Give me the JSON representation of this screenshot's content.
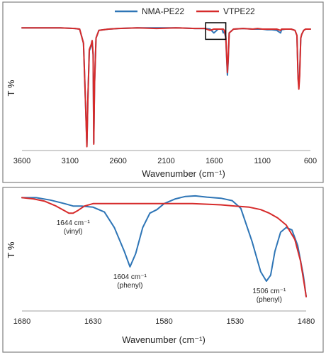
{
  "chart_data": [
    {
      "type": "line",
      "xlabel": "Wavenumber (cm⁻¹)",
      "ylabel": "T %",
      "x_reversed": true,
      "xlim": [
        3600,
        600
      ],
      "ylim": [
        0,
        100
      ],
      "xticks": [
        3600,
        3100,
        2600,
        2100,
        1600,
        1100,
        600
      ],
      "legend": {
        "placement": "top"
      },
      "series": [
        {
          "name": "NMA-PE22",
          "color": "#2e75b6",
          "points": [
            [
              3600,
              96
            ],
            [
              3400,
              96
            ],
            [
              3200,
              96
            ],
            [
              3050,
              95.5
            ],
            [
              3000,
              95
            ],
            [
              2960,
              84
            ],
            [
              2940,
              40
            ],
            [
              2925,
              4
            ],
            [
              2915,
              38
            ],
            [
              2900,
              78
            ],
            [
              2880,
              82
            ],
            [
              2870,
              86
            ],
            [
              2860,
              75
            ],
            [
              2853,
              6
            ],
            [
              2845,
              52
            ],
            [
              2830,
              88
            ],
            [
              2800,
              94
            ],
            [
              2700,
              95
            ],
            [
              2600,
              95.5
            ],
            [
              2400,
              96
            ],
            [
              2200,
              96
            ],
            [
              2000,
              96
            ],
            [
              1800,
              95.5
            ],
            [
              1700,
              95.5
            ],
            [
              1644,
              95
            ],
            [
              1604,
              92
            ],
            [
              1560,
              95
            ],
            [
              1520,
              95
            ],
            [
              1506,
              92
            ],
            [
              1495,
              93
            ],
            [
              1480,
              88
            ],
            [
              1470,
              70
            ],
            [
              1463,
              59
            ],
            [
              1455,
              70
            ],
            [
              1445,
              92
            ],
            [
              1400,
              95
            ],
            [
              1300,
              95.5
            ],
            [
              1200,
              95
            ],
            [
              1150,
              95
            ],
            [
              1100,
              95
            ],
            [
              1050,
              94.5
            ],
            [
              1000,
              94.5
            ],
            [
              950,
              94
            ],
            [
              910,
              92
            ],
            [
              900,
              94.5
            ],
            [
              860,
              95
            ],
            [
              800,
              95
            ],
            [
              760,
              94
            ],
            [
              740,
              90
            ],
            [
              728,
              58
            ],
            [
              720,
              50
            ],
            [
              712,
              60
            ],
            [
              700,
              88
            ],
            [
              690,
              91
            ],
            [
              670,
              94
            ],
            [
              650,
              95
            ],
            [
              600,
              95
            ]
          ]
        },
        {
          "name": "VTPE22",
          "color": "#d62b2b",
          "points": [
            [
              3600,
              96
            ],
            [
              3400,
              96
            ],
            [
              3200,
              96
            ],
            [
              3050,
              95.5
            ],
            [
              3000,
              95
            ],
            [
              2960,
              84
            ],
            [
              2940,
              40
            ],
            [
              2925,
              3
            ],
            [
              2915,
              38
            ],
            [
              2900,
              79
            ],
            [
              2880,
              83
            ],
            [
              2870,
              86
            ],
            [
              2860,
              75
            ],
            [
              2853,
              5
            ],
            [
              2845,
              52
            ],
            [
              2830,
              88
            ],
            [
              2800,
              94
            ],
            [
              2700,
              95
            ],
            [
              2600,
              95.5
            ],
            [
              2400,
              96
            ],
            [
              2200,
              95.5
            ],
            [
              2000,
              96
            ],
            [
              1800,
              95.5
            ],
            [
              1700,
              95.5
            ],
            [
              1644,
              94
            ],
            [
              1604,
              95
            ],
            [
              1560,
              95
            ],
            [
              1520,
              95
            ],
            [
              1506,
              95
            ],
            [
              1495,
              94
            ],
            [
              1480,
              89
            ],
            [
              1470,
              72
            ],
            [
              1463,
              61
            ],
            [
              1455,
              72
            ],
            [
              1445,
              92
            ],
            [
              1400,
              95
            ],
            [
              1300,
              95.5
            ],
            [
              1200,
              95
            ],
            [
              1150,
              95.5
            ],
            [
              1100,
              95
            ],
            [
              1050,
              95
            ],
            [
              1000,
              95
            ],
            [
              950,
              95
            ],
            [
              910,
              94
            ],
            [
              900,
              95
            ],
            [
              860,
              95
            ],
            [
              800,
              95
            ],
            [
              760,
              94
            ],
            [
              740,
              90
            ],
            [
              728,
              56
            ],
            [
              720,
              48
            ],
            [
              712,
              58
            ],
            [
              700,
              88
            ],
            [
              690,
              91
            ],
            [
              670,
              94
            ],
            [
              650,
              95
            ],
            [
              600,
              95
            ]
          ]
        }
      ],
      "annotations": [
        {
          "type": "highlight-box",
          "x_range": [
            1690,
            1480
          ],
          "y_range": [
            87,
            100
          ]
        }
      ]
    },
    {
      "type": "line",
      "xlabel": "Wavenumber (cm⁻¹)",
      "ylabel": "T %",
      "x_reversed": true,
      "xlim": [
        1680,
        1480
      ],
      "ylim": [
        0,
        100
      ],
      "xticks": [
        1680,
        1630,
        1580,
        1530,
        1480
      ],
      "series": [
        {
          "name": "NMA-PE22",
          "color": "#2e75b6",
          "points": [
            [
              1680,
              95
            ],
            [
              1670,
              95
            ],
            [
              1660,
              93
            ],
            [
              1650,
              90
            ],
            [
              1644,
              88
            ],
            [
              1638,
              88
            ],
            [
              1630,
              87
            ],
            [
              1622,
              83
            ],
            [
              1615,
              70
            ],
            [
              1608,
              50
            ],
            [
              1604,
              37
            ],
            [
              1600,
              48
            ],
            [
              1595,
              70
            ],
            [
              1590,
              82
            ],
            [
              1585,
              85
            ],
            [
              1580,
              90
            ],
            [
              1572,
              94
            ],
            [
              1565,
              96
            ],
            [
              1558,
              96.5
            ],
            [
              1550,
              95.5
            ],
            [
              1540,
              94.5
            ],
            [
              1532,
              92.5
            ],
            [
              1526,
              86
            ],
            [
              1518,
              58
            ],
            [
              1512,
              33
            ],
            [
              1508,
              25
            ],
            [
              1505,
              30
            ],
            [
              1502,
              50
            ],
            [
              1498,
              66
            ],
            [
              1494,
              70
            ],
            [
              1490,
              68
            ],
            [
              1486,
              55
            ],
            [
              1482,
              30
            ],
            [
              1480,
              12
            ]
          ]
        },
        {
          "name": "VTPE22",
          "color": "#d62b2b",
          "points": [
            [
              1680,
              95
            ],
            [
              1672,
              94
            ],
            [
              1664,
              92
            ],
            [
              1656,
              88
            ],
            [
              1650,
              84
            ],
            [
              1647,
              82
            ],
            [
              1644,
              82
            ],
            [
              1641,
              84
            ],
            [
              1636,
              88
            ],
            [
              1630,
              90
            ],
            [
              1620,
              90
            ],
            [
              1610,
              90
            ],
            [
              1600,
              90
            ],
            [
              1590,
              90
            ],
            [
              1580,
              90
            ],
            [
              1570,
              90
            ],
            [
              1560,
              90
            ],
            [
              1550,
              89.5
            ],
            [
              1540,
              89
            ],
            [
              1530,
              88
            ],
            [
              1520,
              87
            ],
            [
              1512,
              85
            ],
            [
              1506,
              82
            ],
            [
              1500,
              78
            ],
            [
              1494,
              72
            ],
            [
              1488,
              60
            ],
            [
              1484,
              42
            ],
            [
              1481,
              20
            ],
            [
              1480,
              12
            ]
          ]
        }
      ],
      "annotations": [
        {
          "text": "1644 cm⁻¹",
          "sub": "(vinyl)",
          "x": 1644,
          "y": 82
        },
        {
          "text": "1604 cm⁻¹",
          "sub": "(phenyl)",
          "x": 1604,
          "y": 37
        },
        {
          "text": "1506 cm⁻¹",
          "sub": "(phenyl)",
          "x": 1506,
          "y": 25
        }
      ]
    }
  ]
}
